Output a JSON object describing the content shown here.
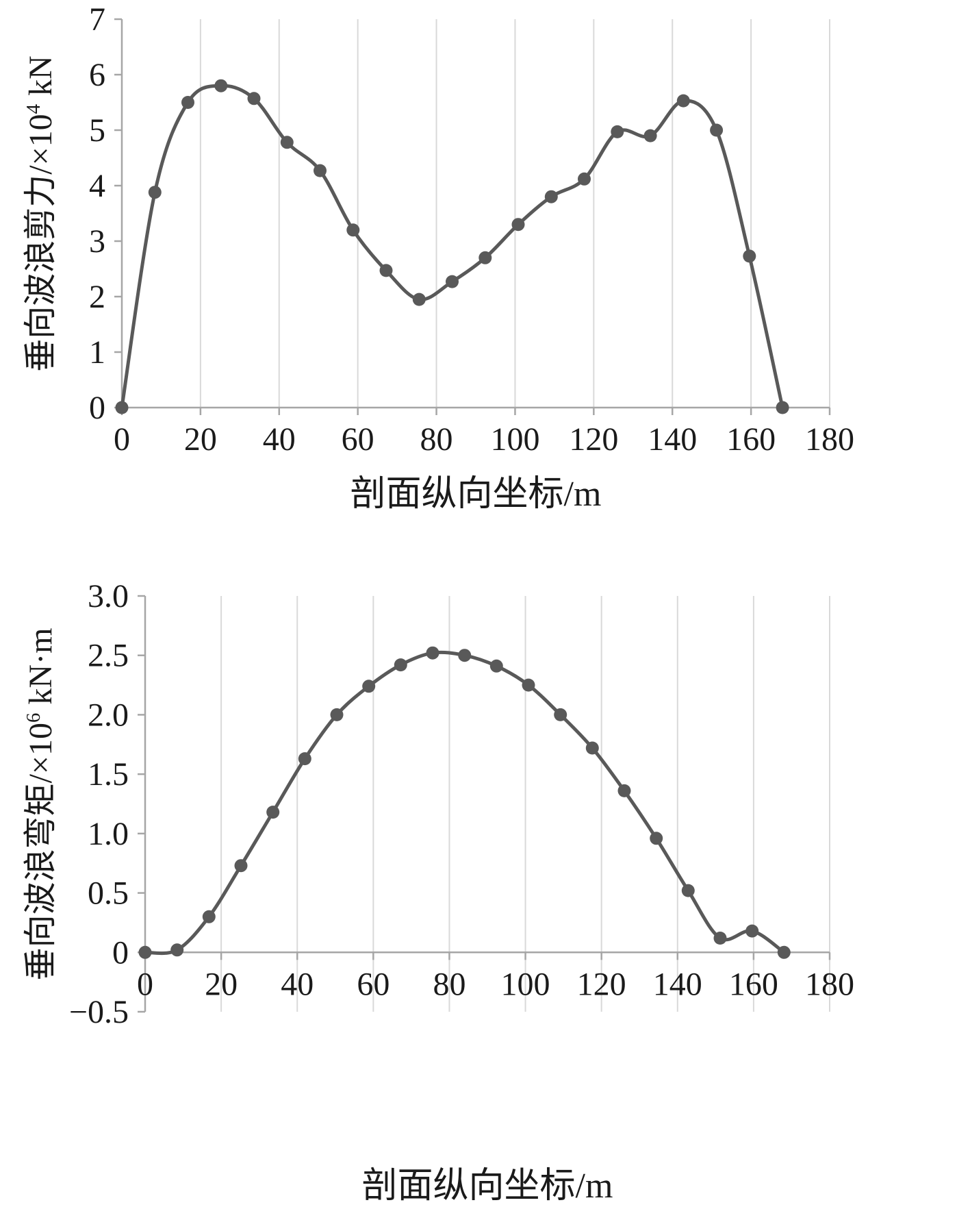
{
  "colors": {
    "line": "#595959",
    "marker": "#595959",
    "gridline": "#d9d9d9",
    "axis": "#a6a6a6",
    "text": "#1a1a1a"
  },
  "chart_data": [
    {
      "type": "line",
      "name": "vertical-wave-shear-force",
      "ylabel_prefix": "垂向波浪剪力/×10",
      "ylabel_sup": "4",
      "ylabel_suffix": " kN",
      "xlabel": "剖面纵向坐标/m",
      "xlim": [
        0,
        180
      ],
      "ylim": [
        0,
        7
      ],
      "xticks": [
        0,
        20,
        40,
        60,
        80,
        100,
        120,
        140,
        160,
        180
      ],
      "xtick_labels": [
        "0",
        "20",
        "40",
        "60",
        "80",
        "100",
        "120",
        "140",
        "160",
        "180"
      ],
      "yticks": [
        0,
        1,
        2,
        3,
        4,
        5,
        6,
        7
      ],
      "ytick_labels": [
        "0",
        "1",
        "2",
        "3",
        "4",
        "5",
        "6",
        "7"
      ],
      "grid": "vertical-only",
      "legend": "none",
      "x": [
        0,
        8.4,
        16.8,
        25.2,
        33.6,
        42,
        50.4,
        58.8,
        67.2,
        75.6,
        84,
        92.4,
        100.8,
        109.2,
        117.6,
        126,
        134.4,
        142.8,
        151.2,
        159.6,
        168
      ],
      "y": [
        0,
        3.88,
        5.5,
        5.8,
        5.57,
        4.78,
        4.27,
        3.2,
        2.47,
        1.95,
        2.27,
        2.7,
        3.3,
        3.8,
        4.12,
        4.97,
        4.9,
        5.53,
        5.0,
        2.73,
        0
      ]
    },
    {
      "type": "line",
      "name": "vertical-wave-bending-moment",
      "ylabel_prefix": "垂向波浪弯矩/×10",
      "ylabel_sup": "6",
      "ylabel_suffix": " kN·m",
      "xlabel": "剖面纵向坐标/m",
      "xlim": [
        0,
        180
      ],
      "ylim": [
        -0.5,
        3.0
      ],
      "xticks": [
        0,
        20,
        40,
        60,
        80,
        100,
        120,
        140,
        160,
        180
      ],
      "xtick_labels": [
        "0",
        "20",
        "40",
        "60",
        "80",
        "100",
        "120",
        "140",
        "160",
        "180"
      ],
      "yticks": [
        -0.5,
        0,
        0.5,
        1.0,
        1.5,
        2.0,
        2.5,
        3.0
      ],
      "ytick_labels": [
        "−0.5",
        "0",
        "0.5",
        "1.0",
        "1.5",
        "2.0",
        "2.5",
        "3.0"
      ],
      "grid": "vertical-only",
      "legend": "none",
      "x": [
        0,
        8.4,
        16.8,
        25.2,
        33.6,
        42,
        50.4,
        58.8,
        67.2,
        75.6,
        84,
        92.4,
        100.8,
        109.2,
        117.6,
        126,
        134.4,
        142.8,
        151.2,
        159.6,
        168
      ],
      "y": [
        0,
        0.02,
        0.3,
        0.73,
        1.18,
        1.63,
        2.0,
        2.24,
        2.42,
        2.52,
        2.5,
        2.41,
        2.25,
        2.0,
        1.72,
        1.36,
        0.96,
        0.52,
        0.12,
        0.18,
        0
      ]
    }
  ]
}
